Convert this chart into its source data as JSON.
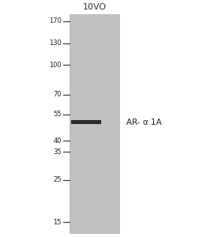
{
  "lane_label": "10VO",
  "band_label": "AR- α 1A",
  "mw_markers": [
    170,
    130,
    100,
    70,
    55,
    40,
    35,
    25,
    15
  ],
  "band_mw": 50,
  "lane_color": "#c0c0c0",
  "band_color": "#2a2a2a",
  "bg_color": "#ffffff",
  "fig_width": 2.76,
  "fig_height": 3.0,
  "dpi": 100,
  "mw_log_min": 13,
  "mw_log_max": 185
}
